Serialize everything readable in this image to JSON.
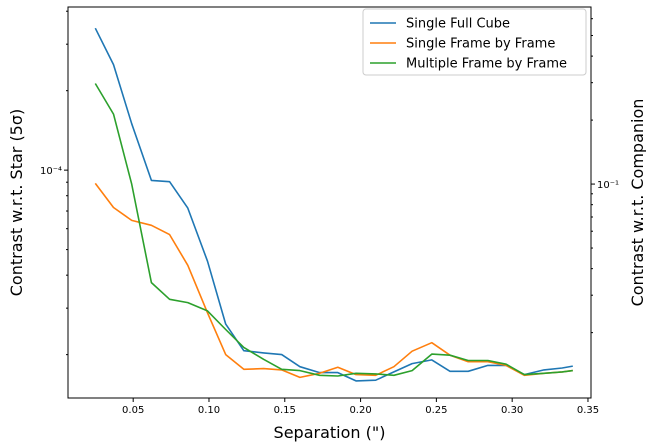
{
  "chart_data": {
    "type": "line",
    "xlabel": "Separation (\")",
    "ylabel": "Contrast w.r.t. Star (5σ)",
    "ylabel_right": "Contrast w.r.t. Companion",
    "xlim": [
      0.007,
      0.352
    ],
    "ylim": [
      1.37e-05,
      0.000415
    ],
    "y_scale": "log",
    "ylim_right": [
      0.00985,
      0.681
    ],
    "y_scale_right": "log",
    "grid": false,
    "legend_position": "top-right",
    "x_ticks": [
      {
        "value": 0.05,
        "label": "0.05"
      },
      {
        "value": 0.1,
        "label": "0.10"
      },
      {
        "value": 0.15,
        "label": "0.15"
      },
      {
        "value": 0.2,
        "label": "0.20"
      },
      {
        "value": 0.25,
        "label": "0.25"
      },
      {
        "value": 0.3,
        "label": "0.30"
      },
      {
        "value": 0.35,
        "label": "0.35"
      }
    ],
    "y_ticks_left": [
      {
        "value": 0.0001,
        "label": "10⁻⁴"
      }
    ],
    "y_ticks_right": [
      {
        "value": 0.1,
        "label": "10⁻¹"
      }
    ],
    "x": [
      0.025,
      0.037,
      0.049,
      0.062,
      0.074,
      0.086,
      0.099,
      0.111,
      0.123,
      0.136,
      0.148,
      0.16,
      0.173,
      0.185,
      0.197,
      0.21,
      0.222,
      0.234,
      0.247,
      0.259,
      0.271,
      0.284,
      0.296,
      0.308,
      0.321,
      0.333,
      0.34
    ],
    "series": [
      {
        "name": "Single Full Cube",
        "color": "#1f77b4",
        "values": [
          0.000345,
          0.000251,
          0.00015,
          9.14e-05,
          9.04e-05,
          7.18e-05,
          4.52e-05,
          2.61e-05,
          2.07e-05,
          2.03e-05,
          2e-05,
          1.8e-05,
          1.71e-05,
          1.71e-05,
          1.59e-05,
          1.6e-05,
          1.72e-05,
          1.85e-05,
          1.91e-05,
          1.73e-05,
          1.73e-05,
          1.82e-05,
          1.82e-05,
          1.68e-05,
          1.75e-05,
          1.78e-05,
          1.81e-05
        ]
      },
      {
        "name": "Single Frame by Frame",
        "color": "#ff7f0e",
        "values": [
          8.91e-05,
          7.22e-05,
          6.45e-05,
          6.18e-05,
          5.7e-05,
          4.36e-05,
          2.88e-05,
          2e-05,
          1.76e-05,
          1.77e-05,
          1.75e-05,
          1.64e-05,
          1.7e-05,
          1.79e-05,
          1.68e-05,
          1.67e-05,
          1.8e-05,
          2.06e-05,
          2.22e-05,
          1.99e-05,
          1.88e-05,
          1.88e-05,
          1.82e-05,
          1.67e-05,
          1.7e-05,
          1.72e-05,
          1.74e-05
        ]
      },
      {
        "name": "Multiple Frame by Frame",
        "color": "#2ca02c",
        "values": [
          0.000213,
          0.000163,
          8.85e-05,
          3.75e-05,
          3.24e-05,
          3.15e-05,
          2.93e-05,
          2.49e-05,
          2.13e-05,
          1.92e-05,
          1.76e-05,
          1.74e-05,
          1.67e-05,
          1.66e-05,
          1.7e-05,
          1.69e-05,
          1.67e-05,
          1.74e-05,
          2.01e-05,
          1.99e-05,
          1.9e-05,
          1.9e-05,
          1.84e-05,
          1.68e-05,
          1.7e-05,
          1.72e-05,
          1.74e-05
        ]
      }
    ]
  }
}
